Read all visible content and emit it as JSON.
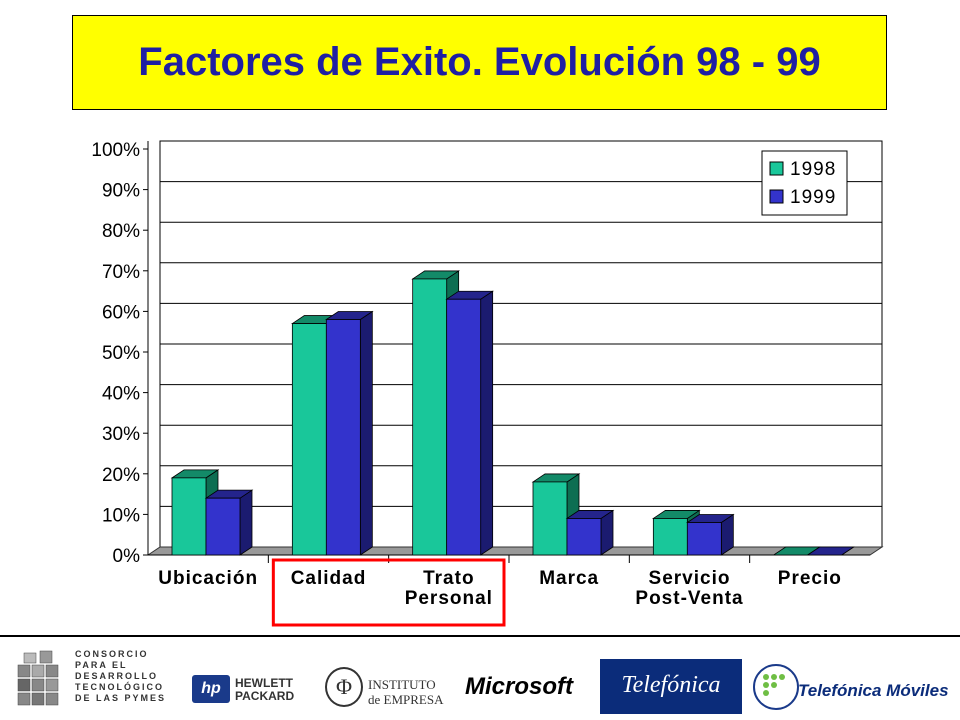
{
  "title": "Factores de Exito. Evolución 98 - 99",
  "colors": {
    "title_bg": "#ffff00",
    "title_text": "#1f1fa3",
    "s1998": "#19c79a",
    "s1999": "#3333cc",
    "highlight": "#ff0000"
  },
  "chart_data": {
    "type": "bar",
    "title": "Factores de Exito. Evolución 98 - 99",
    "categories": [
      [
        "Ubicación"
      ],
      [
        "Calidad"
      ],
      [
        "Trato",
        "Personal"
      ],
      [
        "Marca"
      ],
      [
        "Servicio",
        "Post-Venta"
      ],
      [
        "Precio"
      ]
    ],
    "series": [
      {
        "name": "1998",
        "values": [
          19,
          57,
          68,
          18,
          9,
          0
        ]
      },
      {
        "name": "1999",
        "values": [
          14,
          58,
          63,
          9,
          8,
          0
        ]
      }
    ],
    "ylim": [
      0,
      100
    ],
    "yticks": [
      "0%",
      "10%",
      "20%",
      "30%",
      "40%",
      "50%",
      "60%",
      "70%",
      "80%",
      "90%",
      "100%"
    ],
    "grid": true,
    "legend": "top-right",
    "highlighted_categories": [
      "Calidad",
      "Trato Personal"
    ]
  },
  "footer": {
    "consorcio": [
      "CONSORCIO",
      "PARA EL",
      "DESARROLLO",
      "TECNOLÓGICO",
      "DE LAS PYMES"
    ],
    "hp": [
      "HEWLETT",
      "PACKARD"
    ],
    "ie": [
      "INSTITUTO",
      "de EMPRESA"
    ],
    "microsoft": "Microsoft",
    "telefonica": "Telefónica",
    "moviles": "Telefónica Móviles"
  }
}
